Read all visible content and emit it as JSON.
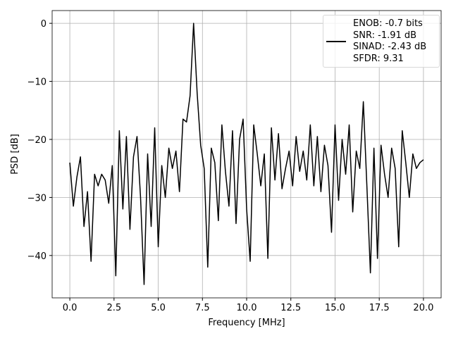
{
  "chart_data": {
    "type": "line",
    "xlabel": "Frequency [MHz]",
    "ylabel": "PSD [dB]",
    "x": [
      0,
      0.2,
      0.4,
      0.6,
      0.8,
      1.0,
      1.2,
      1.4,
      1.6,
      1.8,
      2.0,
      2.2,
      2.4,
      2.6,
      2.8,
      3.0,
      3.2,
      3.4,
      3.6,
      3.8,
      4.0,
      4.2,
      4.4,
      4.6,
      4.8,
      5.0,
      5.2,
      5.4,
      5.6,
      5.8,
      6.0,
      6.2,
      6.4,
      6.6,
      6.8,
      7.0,
      7.2,
      7.4,
      7.6,
      7.8,
      8.0,
      8.2,
      8.4,
      8.6,
      8.8,
      9.0,
      9.2,
      9.4,
      9.6,
      9.8,
      10.0,
      10.2,
      10.4,
      10.6,
      10.8,
      11.0,
      11.2,
      11.4,
      11.6,
      11.8,
      12.0,
      12.2,
      12.4,
      12.6,
      12.8,
      13.0,
      13.2,
      13.4,
      13.6,
      13.8,
      14.0,
      14.2,
      14.4,
      14.6,
      14.8,
      15.0,
      15.2,
      15.4,
      15.6,
      15.8,
      16.0,
      16.2,
      16.4,
      16.6,
      16.8,
      17.0,
      17.2,
      17.4,
      17.6,
      17.8,
      18.0,
      18.2,
      18.4,
      18.6,
      18.8,
      19.0,
      19.2,
      19.4,
      19.6,
      19.8,
      20.0
    ],
    "series": [
      {
        "name": "ENOB: -0.7 bits\nSNR: -1.91 dB\nSINAD: -2.43 dB\nSFDR: 9.31",
        "color": "#000000",
        "values": [
          -24,
          -31.5,
          -26.5,
          -23,
          -35,
          -29,
          -41,
          -26,
          -28,
          -26,
          -27,
          -31,
          -24.5,
          -43.5,
          -18.5,
          -32,
          -19.5,
          -35.5,
          -23,
          -19.5,
          -30,
          -45,
          -22.5,
          -35,
          -18,
          -38.5,
          -24.5,
          -30,
          -21.5,
          -25,
          -22,
          -29,
          -16.5,
          -17,
          -12.5,
          0,
          -12,
          -21,
          -25,
          -42,
          -21.5,
          -24,
          -34,
          -17.5,
          -25.5,
          -31.5,
          -18.5,
          -34.5,
          -20,
          -16.5,
          -32,
          -41,
          -17.5,
          -22.5,
          -28,
          -22.5,
          -40.5,
          -18,
          -27,
          -19,
          -28.5,
          -25,
          -22,
          -28,
          -19.5,
          -25.5,
          -22,
          -27,
          -17.5,
          -28,
          -19.5,
          -29,
          -21,
          -24.5,
          -36,
          -17.5,
          -30.5,
          -20,
          -26,
          -17.5,
          -32.5,
          -22,
          -25,
          -13.5,
          -28,
          -43,
          -21.5,
          -40.5,
          -21,
          -26,
          -30,
          -21.5,
          -25,
          -38.5,
          -18.5,
          -24,
          -30,
          -22.5,
          -25,
          -24,
          -23.5
        ]
      }
    ],
    "xlim": [
      -1,
      21
    ],
    "ylim": [
      -47.3,
      2.2
    ],
    "xticks": [
      {
        "value": 0,
        "label": "0.0"
      },
      {
        "value": 2.5,
        "label": "2.5"
      },
      {
        "value": 5,
        "label": "5.0"
      },
      {
        "value": 7.5,
        "label": "7.5"
      },
      {
        "value": 10,
        "label": "10.0"
      },
      {
        "value": 12.5,
        "label": "12.5"
      },
      {
        "value": 15,
        "label": "15.0"
      },
      {
        "value": 17.5,
        "label": "17.5"
      },
      {
        "value": 20,
        "label": "20.0"
      }
    ],
    "yticks": [
      0,
      {
        "value": -10,
        "label": "−10"
      },
      {
        "value": -20,
        "label": "−20"
      },
      {
        "value": -30,
        "label": "−30"
      },
      {
        "value": -40,
        "label": "−40"
      }
    ],
    "grid": true,
    "legend": "upper right"
  }
}
